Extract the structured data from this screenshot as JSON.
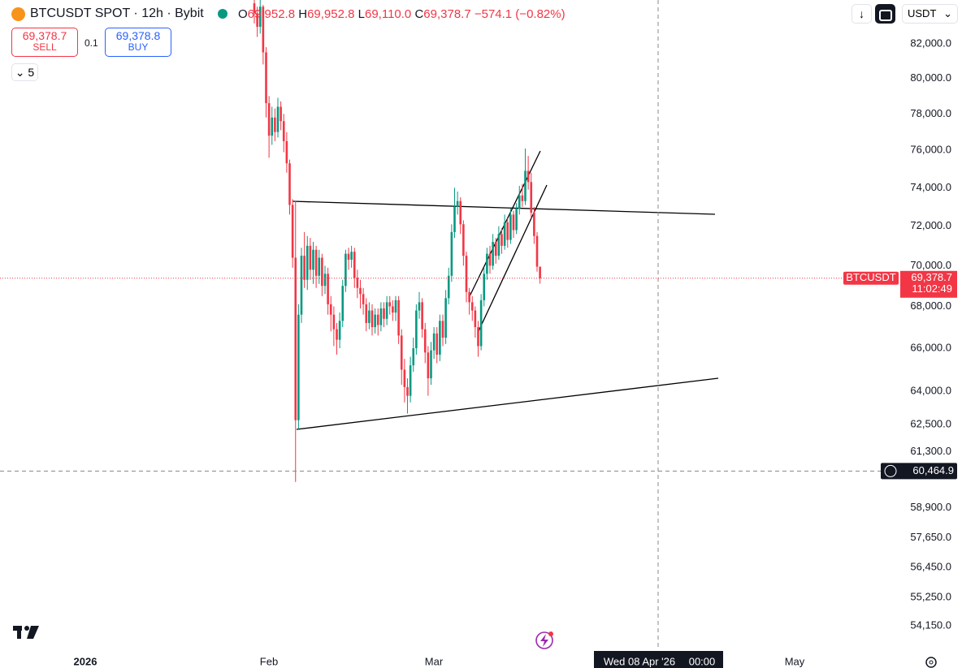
{
  "header": {
    "symbol": "BTCUSDT SPOT · 12h · Bybit",
    "o_label": "O",
    "o": "69,952.8",
    "h_label": "H",
    "h": "69,952.8",
    "l_label": "L",
    "l": "69,110.0",
    "c_label": "C",
    "c": "69,378.7",
    "change": "−574.1 (−0.82%)"
  },
  "trade": {
    "sell_price": "69,378.7",
    "sell": "SELL",
    "qty": "0.1",
    "buy_price": "69,378.8",
    "buy": "BUY"
  },
  "indicators": "5",
  "currency": "USDT",
  "chart_data": {
    "type": "candlestick",
    "log": true,
    "grid": false,
    "up_color": "#089981",
    "down_color": "#f23645",
    "open": [
      84400,
      83800,
      83000,
      84200,
      81500,
      78600,
      76800,
      77800,
      77000,
      78400,
      77600,
      76500,
      75300,
      73100,
      70400,
      62700,
      67600,
      70500,
      69300,
      71000,
      69800,
      70800,
      69500,
      70400,
      69000,
      69600,
      68100,
      67600,
      66900,
      66400,
      67300,
      69000,
      70600,
      70300,
      70700,
      69400,
      68900,
      68600,
      68100,
      67200,
      67800,
      67000,
      67600,
      67100,
      67900,
      67400,
      68200,
      68000,
      67700,
      68300,
      66600,
      65000,
      64200,
      63800,
      65200,
      66000,
      67800,
      68200,
      66900,
      65800,
      64600,
      65900,
      66700,
      65700,
      67300,
      66500,
      68400,
      69500,
      71700,
      73000,
      73300,
      72100,
      70500,
      68700,
      68200,
      67800,
      67000,
      66100,
      68300,
      69600,
      70600,
      70000,
      71200,
      70500,
      71600,
      71000,
      72200,
      71300,
      72600,
      71800,
      72900,
      73600,
      73300,
      74900,
      74300,
      72700,
      71500,
      69952.8
    ],
    "high": [
      84700,
      84200,
      84600,
      84300,
      81800,
      79000,
      78400,
      78300,
      78900,
      78700,
      78000,
      77000,
      75500,
      73400,
      73300,
      68100,
      70900,
      71700,
      71500,
      71400,
      71200,
      71000,
      70800,
      70600,
      70000,
      69900,
      68500,
      68000,
      67200,
      67700,
      69300,
      70800,
      70900,
      71000,
      70900,
      69800,
      69300,
      68900,
      68400,
      68200,
      68100,
      67900,
      67900,
      68200,
      68200,
      68500,
      68500,
      68300,
      68500,
      68500,
      66900,
      65500,
      64600,
      65600,
      66500,
      68100,
      68700,
      68400,
      67200,
      66100,
      66300,
      67000,
      67000,
      67600,
      67600,
      68800,
      69900,
      72100,
      74000,
      73800,
      73500,
      72300,
      70700,
      68900,
      68500,
      68000,
      67300,
      68600,
      69900,
      70900,
      71000,
      71600,
      71400,
      72000,
      71900,
      72600,
      72400,
      72900,
      72800,
      73200,
      74100,
      74200,
      76100,
      75700,
      74800,
      73000,
      71700,
      69952.8
    ],
    "low": [
      83200,
      82400,
      82600,
      80800,
      77800,
      75600,
      76300,
      76500,
      76700,
      77100,
      75900,
      74800,
      72600,
      69900,
      60000,
      62300,
      67200,
      68900,
      68800,
      69300,
      69100,
      68900,
      69100,
      68500,
      68600,
      67600,
      66800,
      66100,
      65700,
      66000,
      67000,
      68700,
      69800,
      69900,
      68900,
      68400,
      67900,
      67600,
      66800,
      66900,
      66600,
      66700,
      66600,
      66800,
      67000,
      67100,
      67600,
      67300,
      67300,
      66200,
      64300,
      63500,
      63000,
      63500,
      64900,
      65700,
      67400,
      66500,
      65300,
      63800,
      64300,
      65500,
      65300,
      65400,
      66100,
      66200,
      68100,
      69200,
      71400,
      72600,
      71600,
      70000,
      68200,
      67600,
      67300,
      66500,
      65600,
      65900,
      68000,
      69300,
      69600,
      69800,
      70100,
      70300,
      70600,
      70800,
      70900,
      71100,
      71400,
      71600,
      72600,
      73000,
      73100,
      73900,
      72400,
      71100,
      69700,
      69110
    ],
    "close": [
      83800,
      83000,
      84200,
      81500,
      78600,
      76800,
      77800,
      77000,
      78400,
      77600,
      76500,
      75300,
      73100,
      70400,
      62700,
      67600,
      70500,
      69300,
      71000,
      69800,
      70800,
      69500,
      70400,
      69000,
      69600,
      68100,
      67600,
      66900,
      66400,
      67300,
      69000,
      70600,
      70300,
      70700,
      69400,
      68900,
      68600,
      68100,
      67200,
      67800,
      67000,
      67600,
      67100,
      67900,
      67400,
      68200,
      68000,
      67700,
      68300,
      66600,
      65000,
      64200,
      63800,
      65200,
      66000,
      67800,
      68200,
      66900,
      65800,
      64600,
      65900,
      66700,
      65700,
      67300,
      66500,
      68400,
      69500,
      71700,
      73000,
      73300,
      72100,
      70500,
      68700,
      68200,
      67800,
      67000,
      66100,
      68300,
      69600,
      70600,
      70000,
      71200,
      70500,
      71600,
      71000,
      72200,
      71300,
      72600,
      71800,
      72900,
      73600,
      73300,
      74900,
      74300,
      72700,
      71500,
      69952.8,
      69378.7
    ],
    "ylim": [
      53250,
      84600
    ],
    "yticks": [
      {
        "value": 82000,
        "label": "82,000.0"
      },
      {
        "value": 80000,
        "label": "80,000.0"
      },
      {
        "value": 78000,
        "label": "78,000.0"
      },
      {
        "value": 76000,
        "label": "76,000.0"
      },
      {
        "value": 74000,
        "label": "74,000.0"
      },
      {
        "value": 72000,
        "label": "72,000.0"
      },
      {
        "value": 70000,
        "label": "70,000.0"
      },
      {
        "value": 68000,
        "label": "68,000.0"
      },
      {
        "value": 66000,
        "label": "66,000.0"
      },
      {
        "value": 64000,
        "label": "64,000.0"
      },
      {
        "value": 62500,
        "label": "62,500.0"
      },
      {
        "value": 61300,
        "label": "61,300.0"
      },
      {
        "value": 58900,
        "label": "58,900.0"
      },
      {
        "value": 57650,
        "label": "57,650.0"
      },
      {
        "value": 56450,
        "label": "56,450.0"
      },
      {
        "value": 55250,
        "label": "55,250.0"
      },
      {
        "value": 54150,
        "label": "54,150.0"
      }
    ],
    "x_labels": [
      "2026",
      "Feb",
      "Mar",
      "May"
    ],
    "last_price": {
      "value": 69378.7,
      "label": "69,378.7",
      "symbol": "BTCUSDT",
      "countdown": "11:02:49"
    },
    "crosshair": {
      "value": 60464.9,
      "label": "60,464.9",
      "time": "Wed 08 Apr '26",
      "clock": "00:00"
    }
  }
}
